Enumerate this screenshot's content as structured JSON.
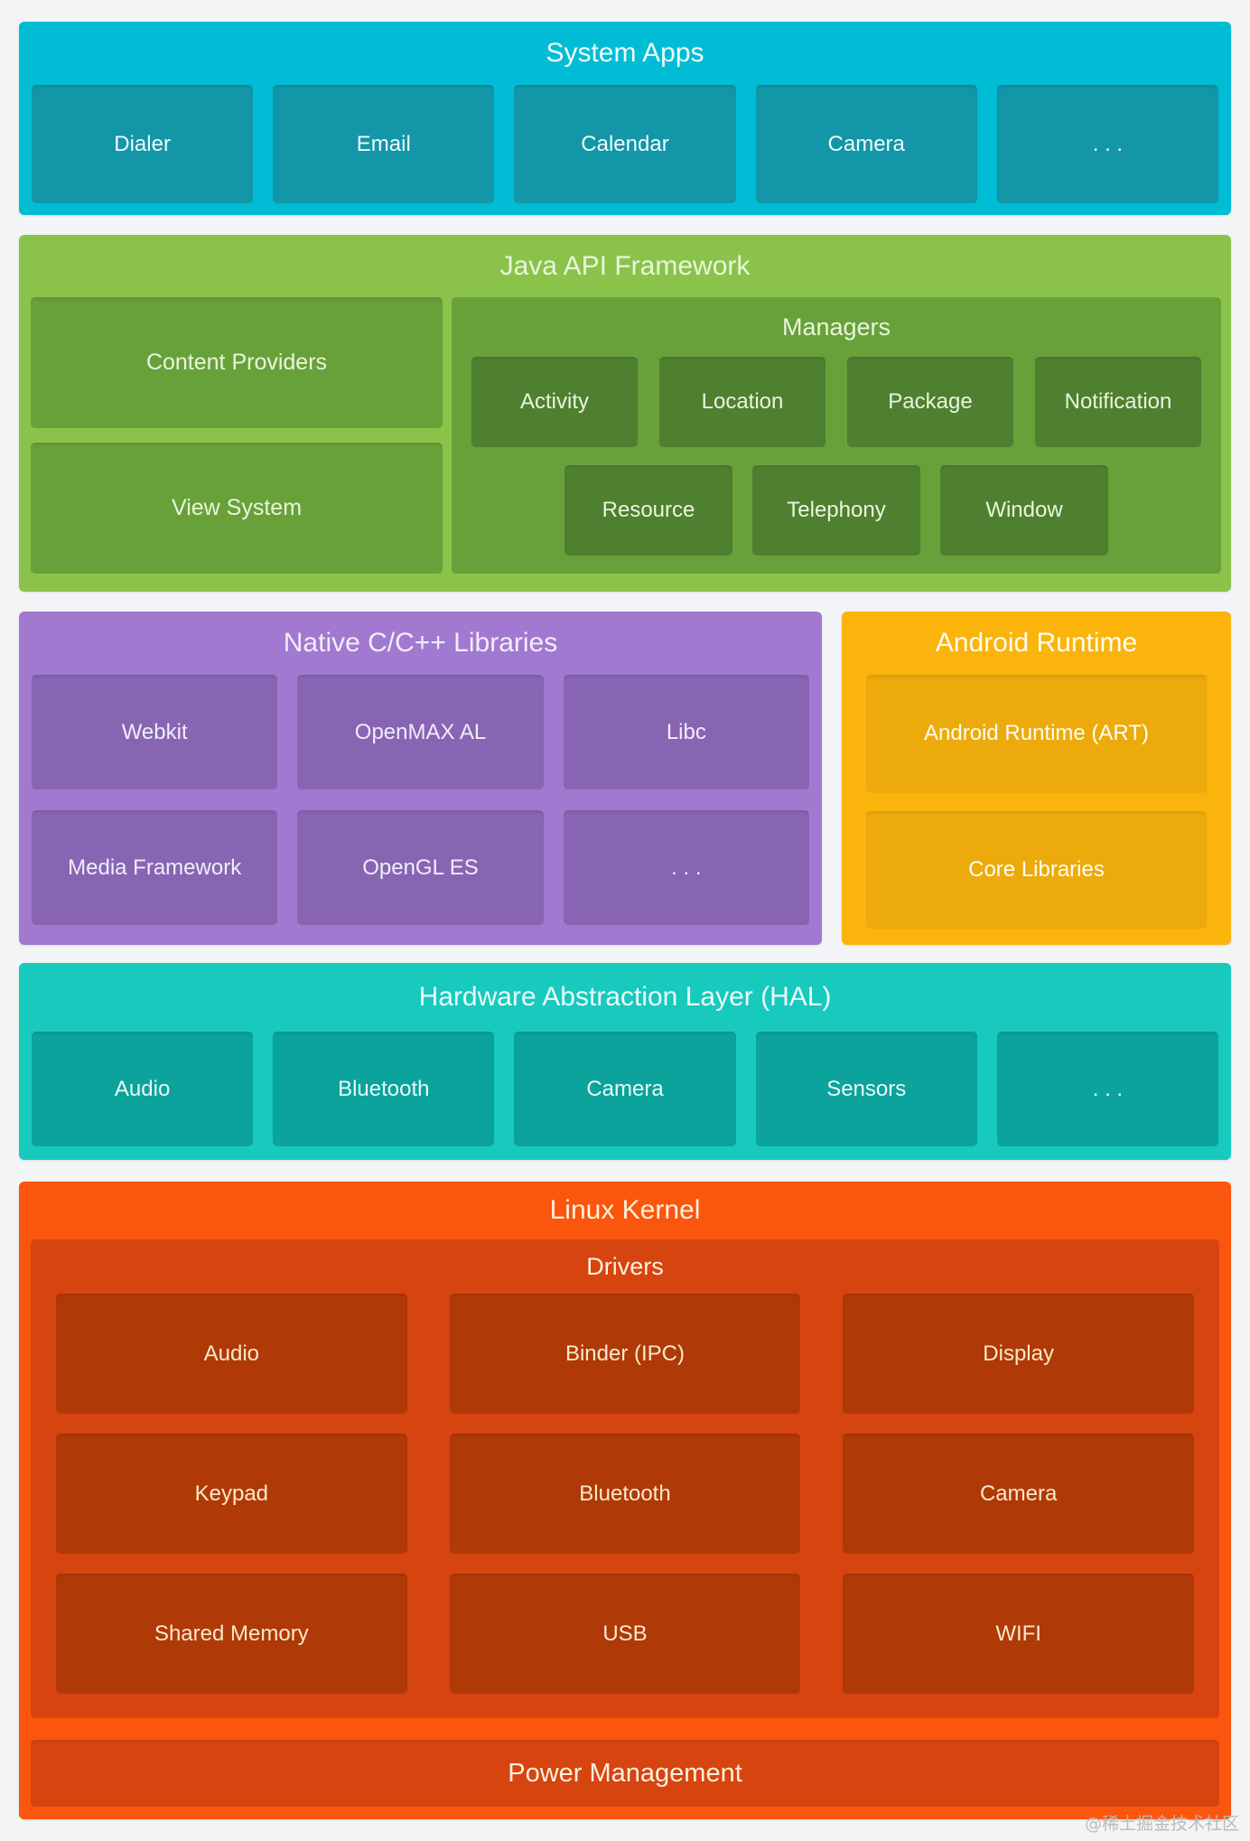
{
  "page": {
    "watermark": "@稀土掘金技术社区"
  },
  "colors": {
    "background": "#F3F4F6",
    "system_apps": {
      "bg": "#00BCD4",
      "block": "#1296A8"
    },
    "java_api": {
      "bg": "#8BC34A",
      "group": "#68A13A",
      "block": "#4E8030"
    },
    "native_libraries": {
      "bg": "#A179D0",
      "block": "#8765B3"
    },
    "android_runtime": {
      "bg": "#FBB40B",
      "block": "#ECAA0D"
    },
    "hal": {
      "bg": "#18C9BE",
      "block": "#0BA39B"
    },
    "linux_kernel": {
      "bg": "#FB560D",
      "group": "#D64410",
      "block": "#B03908"
    },
    "watermark_text": "#B8BABD"
  },
  "layers": {
    "system_apps": {
      "title": "System Apps",
      "blocks": [
        "Dialer",
        "Email",
        "Calendar",
        "Camera",
        ". . ."
      ]
    },
    "java_api_framework": {
      "title": "Java API Framework",
      "blocks_left": [
        "Content Providers",
        "View System"
      ],
      "managers": {
        "title": "Managers",
        "row1": [
          "Activity",
          "Location",
          "Package",
          "Notification"
        ],
        "row2": [
          "Resource",
          "Telephony",
          "Window"
        ]
      }
    },
    "native_libraries": {
      "title": "Native C/C++ Libraries",
      "row1": [
        "Webkit",
        "OpenMAX AL",
        "Libc"
      ],
      "row2": [
        "Media Framework",
        "OpenGL ES",
        ". . ."
      ]
    },
    "android_runtime": {
      "title": "Android Runtime",
      "blocks": [
        "Android Runtime (ART)",
        "Core Libraries"
      ]
    },
    "hal": {
      "title": "Hardware Abstraction Layer (HAL)",
      "blocks": [
        "Audio",
        "Bluetooth",
        "Camera",
        "Sensors",
        ". . ."
      ]
    },
    "linux_kernel": {
      "title": "Linux Kernel",
      "drivers": {
        "title": "Drivers",
        "row1": [
          "Audio",
          "Binder (IPC)",
          "Display"
        ],
        "row2": [
          "Keypad",
          "Bluetooth",
          "Camera"
        ],
        "row3": [
          "Shared Memory",
          "USB",
          "WIFI"
        ]
      },
      "power_management": "Power Management"
    }
  }
}
